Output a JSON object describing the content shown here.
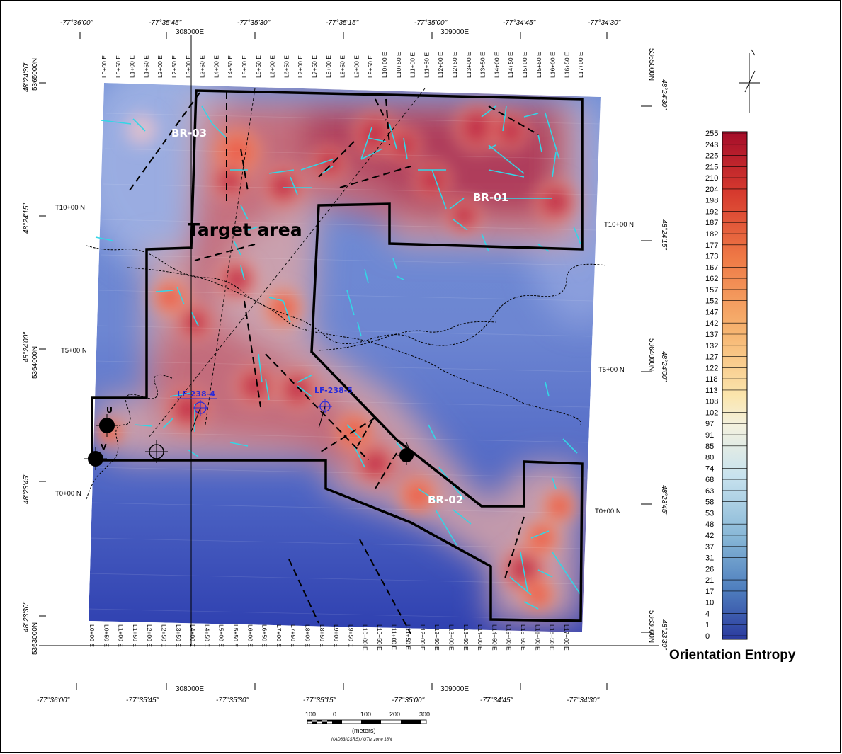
{
  "map": {
    "top_longitudes": [
      "-77°36'00\"",
      "-77°35'45\"",
      "-77°35'30\"",
      "-77°35'15\"",
      "-77°35'00\"",
      "-77°34'45\"",
      "-77°34'30\""
    ],
    "bottom_longitudes": [
      "-77°36'00\"",
      "-77°35'45\"",
      "-77°35'30\"",
      "-77°35'15\"",
      "-77°35'00\"",
      "-77°34'45\"",
      "-77°34'30\""
    ],
    "easting_labels": [
      "308000E",
      "309000E"
    ],
    "left_latitudes": [
      "48°24'30\"",
      "48°24'15\"",
      "48°24'00\"",
      "48°23'45\"",
      "48°23'30\""
    ],
    "right_latitudes": [
      "48°24'30\"",
      "48°24'15\"",
      "48°24'00\"",
      "48°23'45\"",
      "48°23'30\""
    ],
    "northing_labels_left": [
      "5365000N",
      "5364000N",
      "5363000N"
    ],
    "northing_labels_right": [
      "5365000N",
      "5364000N",
      "5363000N"
    ],
    "line_labels_top": [
      "L0+00 E",
      "L0+50 E",
      "L1+00 E",
      "L1+50 E",
      "L2+00 E",
      "L2+50 E",
      "L3+00 E",
      "L3+50 E",
      "L4+00 E",
      "L4+50 E",
      "L5+00 E",
      "L5+50 E",
      "L6+00 E",
      "L6+50 E",
      "L7+00 E",
      "L7+50 E",
      "L8+00 E",
      "L8+50 E",
      "L9+00 E",
      "L9+50 E",
      "L10+00 E",
      "L10+50 E",
      "L11+00 E",
      "L11+50 E",
      "L12+00 E",
      "L12+50 E",
      "L13+00 E",
      "L13+50 E",
      "L14+00 E",
      "L14+50 E",
      "L15+00 E",
      "L15+50 E",
      "L16+00 E",
      "L16+50 E",
      "L17+00 E"
    ],
    "line_labels_bottom": [
      "L0+00 E",
      "L0+50 E",
      "L1+00 E",
      "L1+50 E",
      "L2+00 E",
      "L2+50 E",
      "L3+50 E",
      "L4+00 E",
      "L4+50 E",
      "L5+00 E",
      "L5+50 E",
      "L6+00 E",
      "L6+50 E",
      "L7+00 E",
      "L7+50 E",
      "L8+00 E",
      "L8+50 E",
      "L9+00 E",
      "L9+50 E",
      "L10+00 E",
      "L10+50 E",
      "L11+00 E",
      "L11+50 E",
      "L12+00 E",
      "L12+50 E",
      "L13+00 E",
      "L13+50 E",
      "L14+00 E",
      "L14+50 E",
      "L15+00 E",
      "L15+50 E",
      "L16+00 E",
      "L16+50 E",
      "L17+00 E"
    ],
    "tie_lines_left": [
      "T10+00 N",
      "T5+00 N",
      "T0+00 N"
    ],
    "tie_lines_right": [
      "T10+00 N",
      "T5+00 N",
      "T0+00 N"
    ],
    "zones": [
      "BR-03",
      "BR-01",
      "BR-02"
    ],
    "target_label": "Target area",
    "drill_holes": [
      "LF-238-4",
      "LF-238-5"
    ],
    "points": [
      "U",
      "V"
    ]
  },
  "legend": {
    "title": "Orientation Entropy",
    "ticks": [
      "255",
      "243",
      "225",
      "215",
      "210",
      "204",
      "198",
      "192",
      "187",
      "182",
      "177",
      "173",
      "167",
      "162",
      "157",
      "152",
      "147",
      "142",
      "137",
      "132",
      "127",
      "122",
      "118",
      "113",
      "108",
      "102",
      "97",
      "91",
      "85",
      "80",
      "74",
      "68",
      "63",
      "58",
      "53",
      "48",
      "42",
      "37",
      "31",
      "26",
      "21",
      "17",
      "10",
      "4",
      "1",
      "0"
    ],
    "colors": {
      "low": "#2b3a9e",
      "mid": "#f5ecd0",
      "high": "#a50d2a"
    }
  },
  "scale_bar": {
    "ticks": [
      "100",
      "0",
      "100",
      "200",
      "300"
    ],
    "unit": "(meters)",
    "datum": "NAD83(CSRS) / UTM zone 18N"
  },
  "colors": {
    "low_entropy": "#3a47b0",
    "high_entropy": "#9e1640",
    "structure_lines": "#33d6e6",
    "outline": "#000000",
    "drill_hole": "#2b2bd9"
  }
}
